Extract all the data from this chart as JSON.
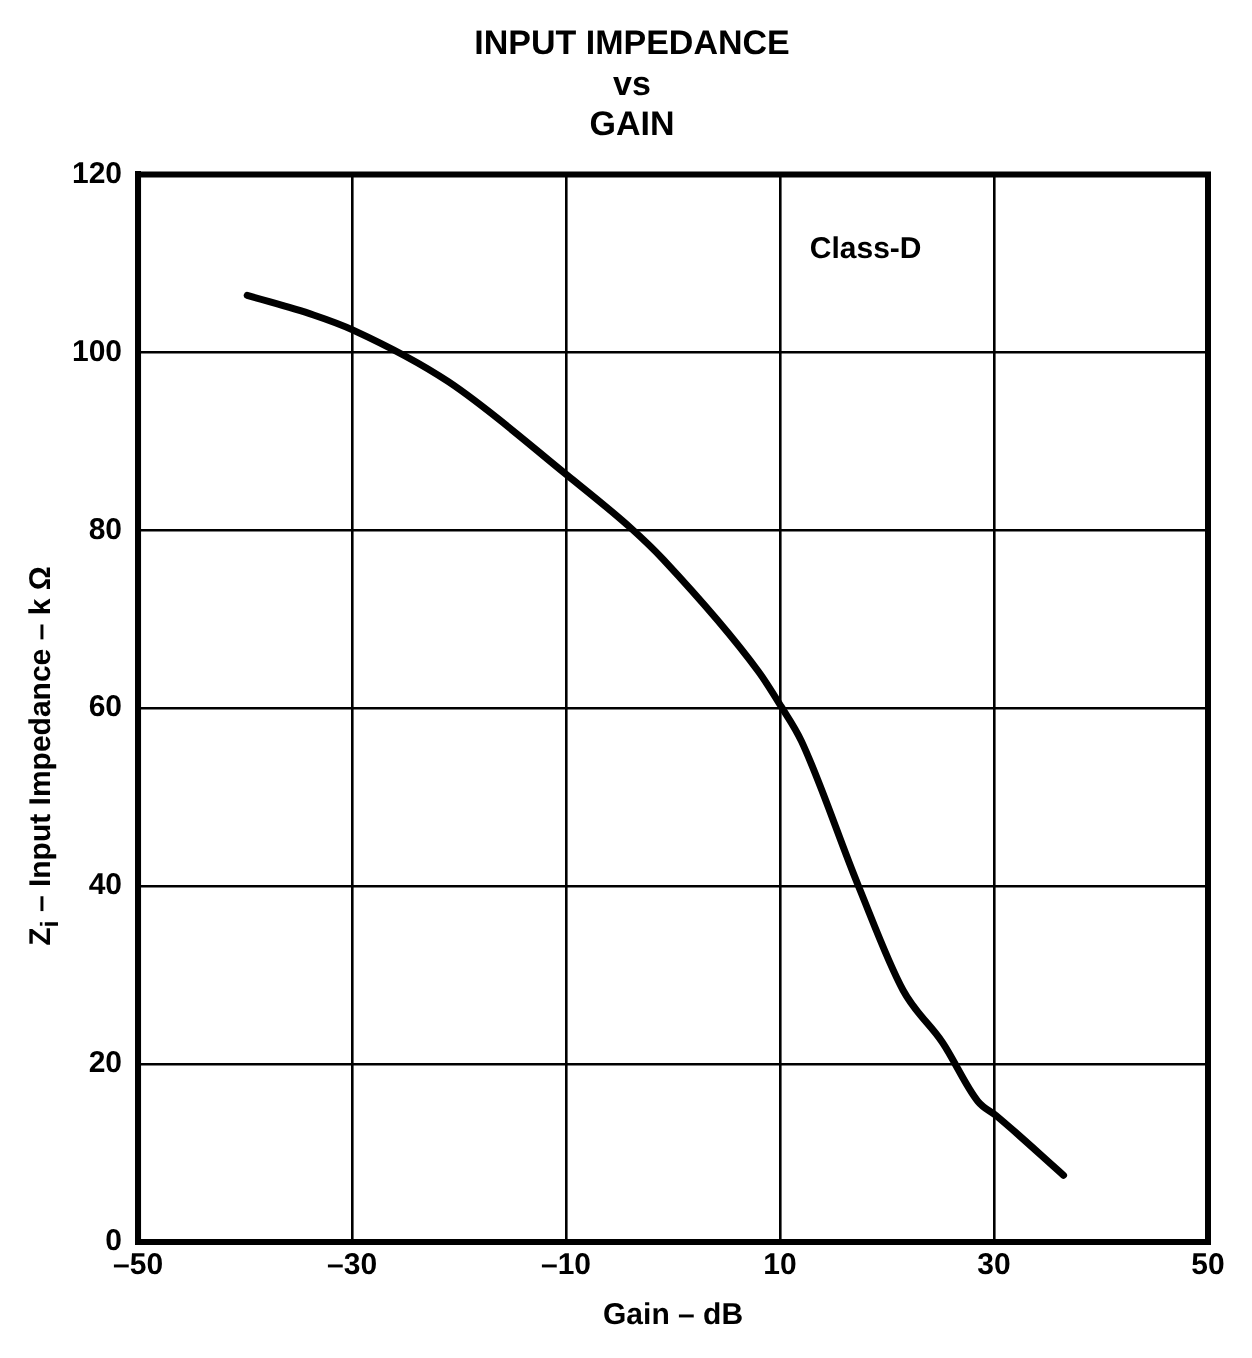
{
  "chart_data": {
    "type": "line",
    "title": "INPUT IMPEDANCE\nvs\nGAIN",
    "xlabel": "Gain – dB",
    "ylabel": "Z$_{i}$ – Input Impedance – k Ω",
    "annotations": [
      "Class-D"
    ],
    "x": [
      -39.8,
      -33.6,
      -29.9,
      -21,
      -9.8,
      -3.9,
      -0.9,
      8,
      10.1,
      12,
      17.3,
      21.5,
      25.2,
      28.5,
      30.2,
      36.5
    ],
    "series": [
      {
        "color": "#000000",
        "values": [
          106.4,
          104.2,
          102.5,
          96.7,
          86.1,
          80.2,
          76.7,
          64.1,
          60.2,
          56.3,
          40.1,
          28.3,
          22.4,
          15.8,
          14.2,
          7.5
        ]
      }
    ],
    "xlim": [
      -50,
      50
    ],
    "xticks": [
      {
        "value": -50,
        "label": "–50"
      },
      {
        "value": -30,
        "label": "–30"
      },
      {
        "value": -10,
        "label": "–10"
      },
      10,
      30,
      50
    ],
    "ylim": [
      0,
      120
    ],
    "yticks": [
      0,
      20,
      40,
      60,
      80,
      100,
      120
    ],
    "grid": true,
    "legend": false,
    "marker": "none",
    "line_style": "solid"
  }
}
